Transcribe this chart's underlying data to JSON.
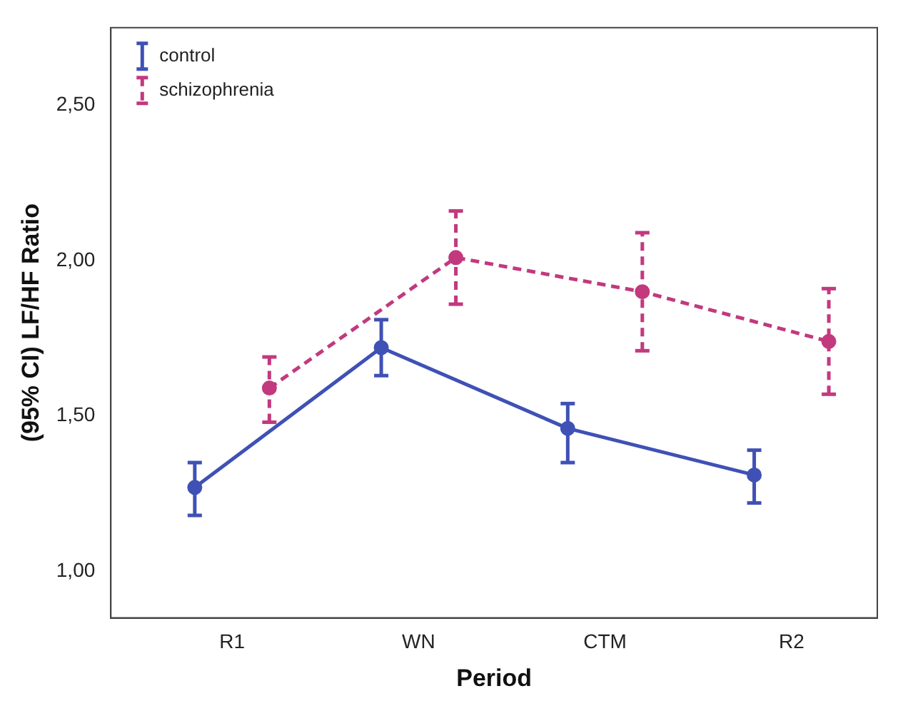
{
  "chart_data": {
    "type": "line",
    "xlabel": "Period",
    "ylabel": "(95% CI) LF/HF Ratio",
    "categories": [
      "R1",
      "WN",
      "CTM",
      "R2"
    ],
    "series": [
      {
        "name": "control",
        "color": "#3f51b5",
        "values": [
          1.27,
          1.72,
          1.46,
          1.31
        ],
        "errors": [
          [
            1.18,
            1.35
          ],
          [
            1.63,
            1.81
          ],
          [
            1.35,
            1.54
          ],
          [
            1.22,
            1.39
          ]
        ],
        "line_style": "solid"
      },
      {
        "name": "schizophrenia",
        "color": "#c2397e",
        "values": [
          1.59,
          2.01,
          1.9,
          1.74
        ],
        "errors": [
          [
            1.48,
            1.69
          ],
          [
            1.86,
            2.16
          ],
          [
            1.71,
            2.09
          ],
          [
            1.57,
            1.91
          ]
        ],
        "line_style": "dashed"
      }
    ],
    "ylim": [
      0.85,
      2.75
    ],
    "yticks": [
      {
        "value": 1,
        "label": "1,00"
      },
      {
        "value": 1.5,
        "label": "1,50"
      },
      {
        "value": 2,
        "label": "2,00"
      },
      {
        "value": 2.5,
        "label": "2,50"
      }
    ],
    "grid": false,
    "legend": "top left",
    "marker": "circle"
  }
}
